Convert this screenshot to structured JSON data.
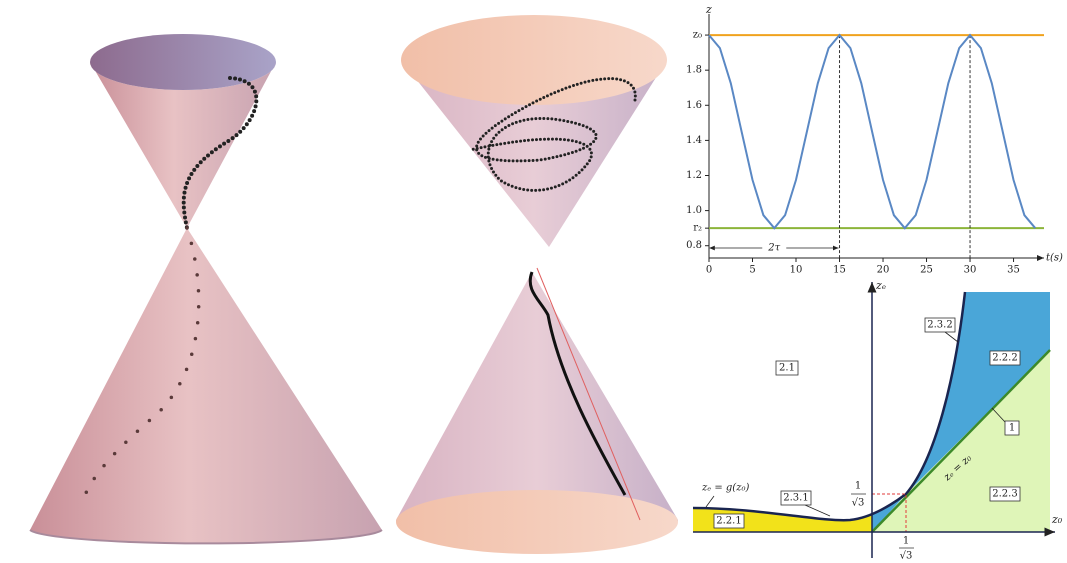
{
  "chart_data": {
    "type": "line",
    "x_label": "t(s)",
    "y_label": "z",
    "x": [
      0,
      1.25,
      2.5,
      3.75,
      5,
      6.25,
      7.5,
      8.75,
      10,
      11.25,
      12.5,
      13.75,
      15,
      16.25,
      17.5,
      18.75,
      20,
      21.25,
      22.5,
      23.75,
      25,
      26.25,
      27.5,
      28.75,
      30,
      31.25,
      32.5,
      33.75,
      35,
      36.25,
      37.5
    ],
    "values": [
      2,
      1.926,
      1.725,
      1.45,
      1.175,
      0.974,
      0.9,
      0.974,
      1.175,
      1.45,
      1.725,
      1.926,
      2,
      1.926,
      1.725,
      1.45,
      1.175,
      0.974,
      0.9,
      0.974,
      1.175,
      1.45,
      1.725,
      1.926,
      2,
      1.926,
      1.725,
      1.45,
      1.175,
      0.974,
      0.9
    ],
    "color": "#5a88c4",
    "hlines": [
      {
        "value": 2,
        "color": "#f0a21e"
      },
      {
        "value": 0.9,
        "color": "#8cb43a"
      }
    ],
    "vlines": [
      15,
      30
    ],
    "span_label": "2τ",
    "xlim": [
      0,
      38.5
    ],
    "ylim": [
      0.73,
      2.12
    ],
    "xticks": [
      0,
      5,
      10,
      15,
      20,
      25,
      30,
      35
    ],
    "yticks": [
      0.8,
      {
        "value": 0.9,
        "label": "r₂"
      },
      {
        "value": 1,
        "label": "1.0"
      },
      1.2,
      1.4,
      1.6,
      1.8,
      {
        "value": 2,
        "label": "z₀"
      }
    ]
  },
  "phase_diagram": {
    "x_label": "z₀",
    "y_label": "zₑ",
    "regions": [
      "2.1",
      "2.2.1",
      "2.2.2",
      "2.2.3",
      "2.3.1",
      "2.3.2",
      "1"
    ],
    "curve_label": "zₑ = g(z₀)",
    "diagonal_label": "zₑ = z₀",
    "x_mark": {
      "numerator": "1",
      "denominator": "√3"
    },
    "y_mark": {
      "numerator": "1",
      "denominator": "√3"
    }
  }
}
